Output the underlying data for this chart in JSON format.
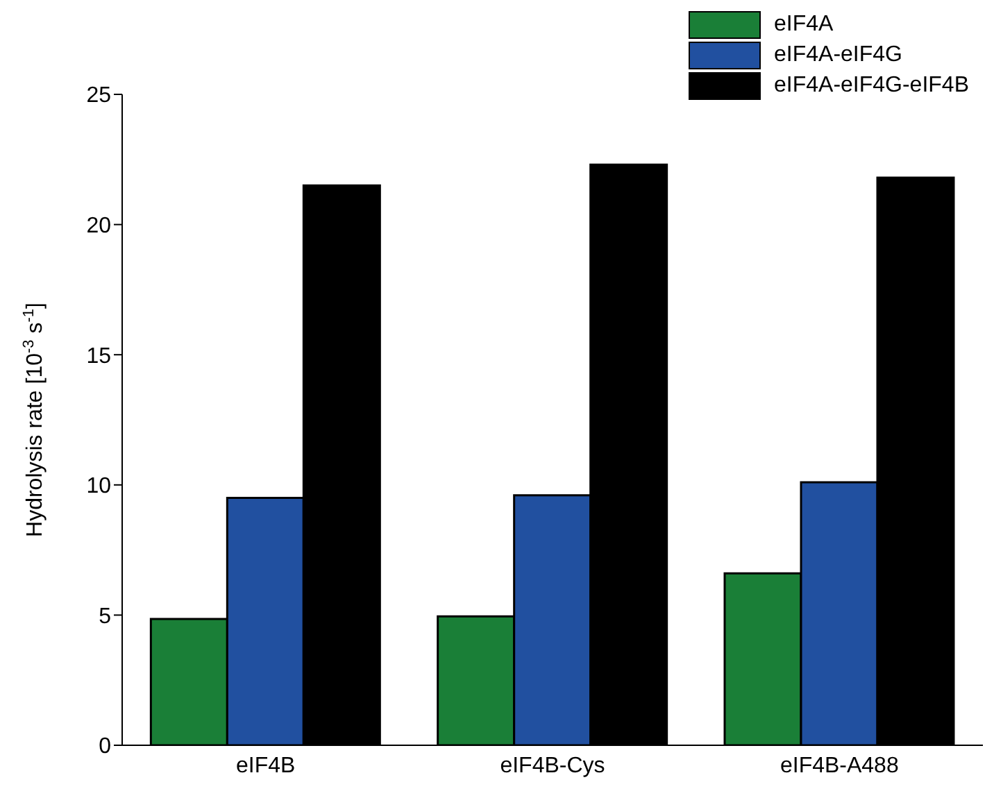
{
  "chart_data": {
    "type": "bar",
    "ylabel": "Hydrolysis rate [10$^{-3}$ s$^{-1}$]",
    "categories": [
      "eIF4B",
      "eIF4B-Cys",
      "eIF4B-A488"
    ],
    "series": [
      {
        "name": "eIF4A",
        "color": "#1a7f37",
        "values": [
          4.85,
          4.95,
          6.6
        ]
      },
      {
        "name": "eIF4A-eIF4G",
        "color": "#2150a0",
        "values": [
          9.5,
          9.6,
          10.1
        ]
      },
      {
        "name": "eIF4A-eIF4G-eIF4B",
        "color": "#000000",
        "values": [
          21.5,
          22.3,
          21.8
        ]
      }
    ],
    "ylim": [
      0,
      25
    ],
    "yticks": [
      0,
      5,
      10,
      15,
      20,
      25
    ],
    "legend": "top right"
  }
}
